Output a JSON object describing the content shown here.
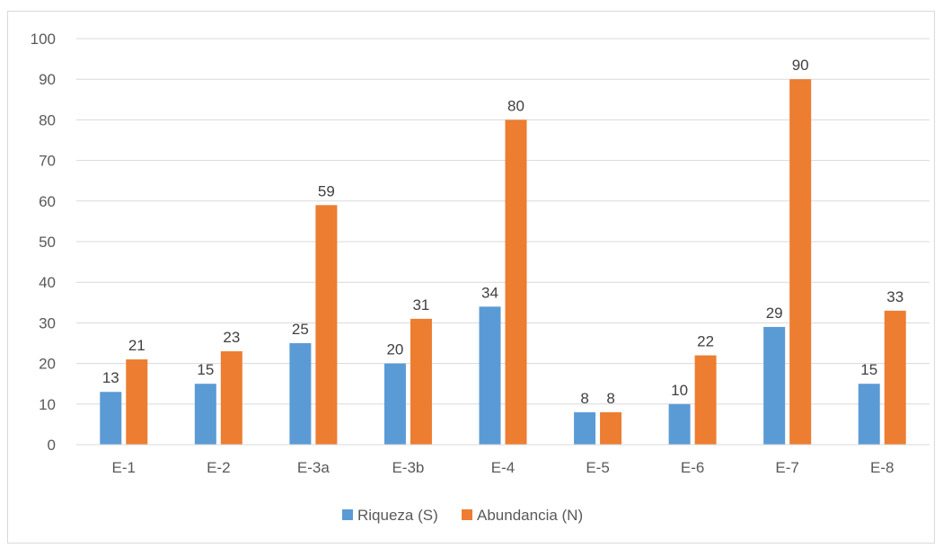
{
  "chart_data": {
    "type": "bar",
    "categories": [
      "E-1",
      "E-2",
      "E-3a",
      "E-3b",
      "E-4",
      "E-5",
      "E-6",
      "E-7",
      "E-8"
    ],
    "series": [
      {
        "name": "Riqueza (S)",
        "values": [
          13,
          15,
          25,
          20,
          34,
          8,
          10,
          29,
          15
        ],
        "color": "#5b9bd5"
      },
      {
        "name": "Abundancia (N)",
        "values": [
          21,
          23,
          59,
          31,
          80,
          8,
          22,
          90,
          33
        ],
        "color": "#ed7d31"
      }
    ],
    "ylim": [
      0,
      100
    ],
    "yticks": [
      0,
      10,
      20,
      30,
      40,
      50,
      60,
      70,
      80,
      90,
      100
    ],
    "grid": true,
    "legend": "bottom",
    "data_labels": true
  }
}
